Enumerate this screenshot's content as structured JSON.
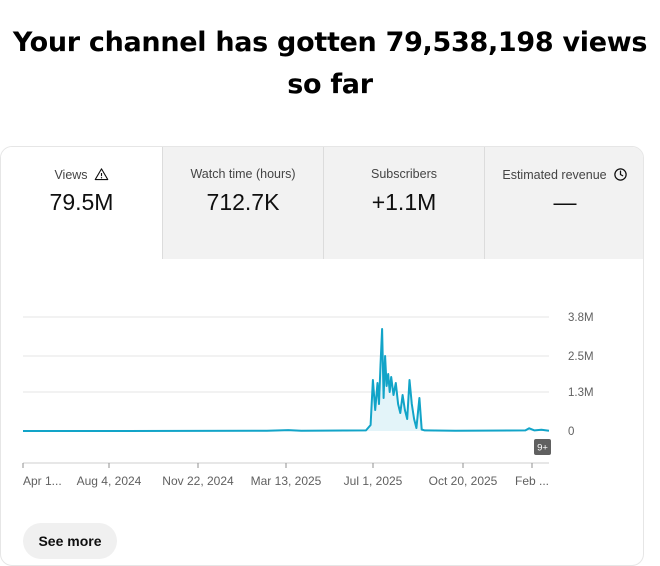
{
  "headline": {
    "line1": "Your channel has gotten 79,538,198 views",
    "line2": "so far"
  },
  "tabs": [
    {
      "label": "Views",
      "value": "79.5M",
      "icon": "warning-icon",
      "active": true
    },
    {
      "label": "Watch time (hours)",
      "value": "712.7K",
      "active": false
    },
    {
      "label": "Subscribers",
      "value": "+1.1M",
      "active": false
    },
    {
      "label": "Estimated revenue",
      "value": "—",
      "icon": "clock-icon",
      "active": false
    }
  ],
  "badge": "9+",
  "see_more_label": "See more",
  "colors": {
    "line": "#12a4c8",
    "fill": "#e3f4f9",
    "grid": "#e5e5e5",
    "axis": "#909090"
  },
  "chart_data": {
    "type": "area",
    "x_tick_labels": [
      "Apr 1...",
      "Aug 4, 2024",
      "Nov 22, 2024",
      "Mar 13, 2025",
      "Jul 1, 2025",
      "Oct 20, 2025",
      "Feb ..."
    ],
    "y_tick_labels": [
      "3.8M",
      "2.5M",
      "1.3M",
      "0"
    ],
    "y_ticks": [
      3800000,
      2500000,
      1300000,
      0
    ],
    "ylim": [
      0,
      3800000
    ],
    "x_range": [
      "2024-04-01",
      "2026-02-20"
    ],
    "grid": true,
    "series": [
      {
        "points": [
          [
            "2024-04-01",
            0
          ],
          [
            "2024-07-15",
            0
          ],
          [
            "2025-02-15",
            10000
          ],
          [
            "2025-03-15",
            30000
          ],
          [
            "2025-04-01",
            10000
          ],
          [
            "2025-06-25",
            20000
          ],
          [
            "2025-07-01",
            200000
          ],
          [
            "2025-07-04",
            1700000
          ],
          [
            "2025-07-07",
            700000
          ],
          [
            "2025-07-10",
            1600000
          ],
          [
            "2025-07-12",
            900000
          ],
          [
            "2025-07-14",
            2200000
          ],
          [
            "2025-07-16",
            3400000
          ],
          [
            "2025-07-18",
            1100000
          ],
          [
            "2025-07-20",
            2500000
          ],
          [
            "2025-07-22",
            1500000
          ],
          [
            "2025-07-24",
            1900000
          ],
          [
            "2025-07-26",
            1300000
          ],
          [
            "2025-07-28",
            1800000
          ],
          [
            "2025-07-31",
            1200000
          ],
          [
            "2025-08-03",
            1600000
          ],
          [
            "2025-08-06",
            900000
          ],
          [
            "2025-08-09",
            600000
          ],
          [
            "2025-08-12",
            1200000
          ],
          [
            "2025-08-15",
            700000
          ],
          [
            "2025-08-18",
            400000
          ],
          [
            "2025-08-21",
            1700000
          ],
          [
            "2025-08-24",
            900000
          ],
          [
            "2025-08-27",
            400000
          ],
          [
            "2025-08-30",
            100000
          ],
          [
            "2025-09-03",
            1100000
          ],
          [
            "2025-09-06",
            50000
          ],
          [
            "2025-09-10",
            20000
          ],
          [
            "2025-10-20",
            10000
          ],
          [
            "2026-01-20",
            20000
          ],
          [
            "2026-01-25",
            90000
          ],
          [
            "2026-02-01",
            20000
          ],
          [
            "2026-02-10",
            40000
          ],
          [
            "2026-02-20",
            10000
          ]
        ]
      }
    ]
  }
}
